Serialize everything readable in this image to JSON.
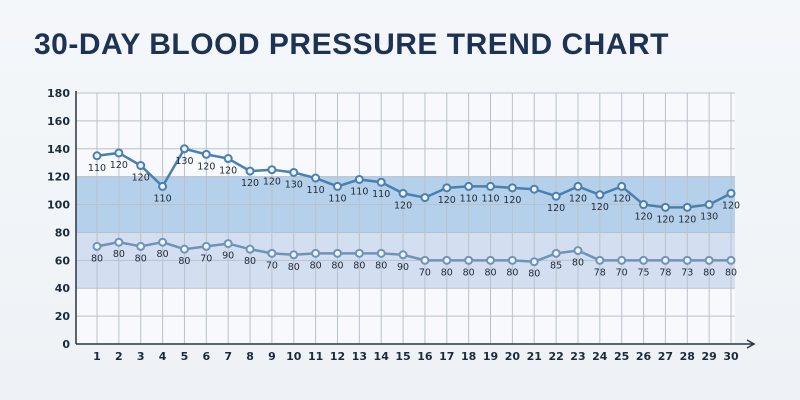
{
  "chart_data": {
    "type": "line",
    "title": "30-DAY BLOOD PRESSURE TREND CHART",
    "xlabel": "",
    "ylabel": "",
    "x": [
      1,
      2,
      3,
      4,
      5,
      6,
      7,
      8,
      9,
      10,
      11,
      12,
      13,
      14,
      15,
      16,
      17,
      18,
      19,
      20,
      21,
      22,
      23,
      24,
      25,
      26,
      27,
      28,
      29,
      30
    ],
    "ylim": [
      0,
      180
    ],
    "yticks": [
      0,
      20,
      40,
      60,
      80,
      100,
      120,
      140,
      160,
      180
    ],
    "grid": true,
    "bands": [
      {
        "from": 40,
        "to": 120,
        "color": "#d3dff0"
      },
      {
        "from": 80,
        "to": 120,
        "color": "#b5d0ea"
      }
    ],
    "series": [
      {
        "values": [
          135,
          137,
          128,
          113,
          140,
          136,
          133,
          124,
          125,
          123,
          119,
          113,
          118,
          116,
          108,
          105,
          112,
          113,
          113,
          112,
          111,
          106,
          113,
          107,
          113,
          100,
          98,
          98,
          100,
          108
        ],
        "labels": [
          "110",
          "120",
          "120",
          "110",
          "130",
          "120",
          "120",
          "120",
          "120",
          "130",
          "110",
          "110",
          "110",
          "110",
          "120",
          "",
          "120",
          "110",
          "110",
          "120",
          "",
          "120",
          "120",
          "120",
          "120",
          "120",
          "120",
          "120",
          "130",
          "120"
        ],
        "color": "#4a7fb0"
      },
      {
        "values": [
          70,
          73,
          70,
          73,
          68,
          70,
          72,
          68,
          65,
          64,
          65,
          65,
          65,
          65,
          64,
          60,
          60,
          60,
          60,
          60,
          59,
          65,
          67,
          60,
          60,
          60,
          60,
          60,
          60,
          60
        ],
        "labels": [
          "80",
          "80",
          "80",
          "80",
          "80",
          "70",
          "90",
          "80",
          "70",
          "80",
          "80",
          "80",
          "80",
          "80",
          "90",
          "70",
          "80",
          "80",
          "80",
          "80",
          "80",
          "85",
          "80",
          "78",
          "70",
          "75",
          "78",
          "73",
          "80",
          "80"
        ],
        "color": "#6f93b8"
      }
    ]
  }
}
